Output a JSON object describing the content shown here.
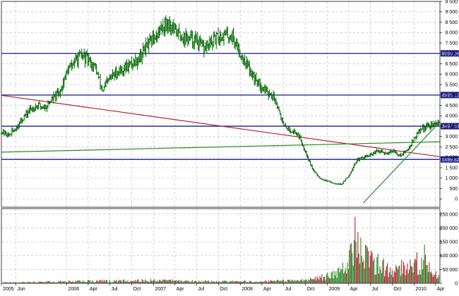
{
  "chart_data": [
    {
      "type": "ohlc",
      "title": "",
      "xlabel": "",
      "ylabel": "",
      "ylim": [
        -400,
        9500
      ],
      "grid": true,
      "y_ticks": [
        0,
        500,
        1000,
        1500,
        2000,
        2500,
        3000,
        3500,
        4000,
        4500,
        5000,
        5500,
        6000,
        6500,
        7000,
        7500,
        8000,
        8500,
        9000,
        9500
      ],
      "y_tick_labels": [
        "0",
        "500",
        "1 000",
        "1 500",
        "2 000",
        "2 500",
        "3 000",
        "3 500",
        "4 000",
        "4 500",
        "5 000",
        "5 500",
        "6 000",
        "6 500",
        "7 000",
        "7 500",
        "8 000",
        "8 500",
        "9 000",
        "9 500"
      ],
      "x_range": [
        "2005-04-01",
        "2010-04-20"
      ],
      "x_ticks": [
        {
          "date": "2005-04-01",
          "label": "2005"
        },
        {
          "date": "2005-06-01",
          "label": "Jun"
        },
        {
          "date": "2006-01-01",
          "label": "2006"
        },
        {
          "date": "2006-04-01",
          "label": "Apr"
        },
        {
          "date": "2006-07-01",
          "label": "Jul"
        },
        {
          "date": "2006-10-01",
          "label": "Oct"
        },
        {
          "date": "2007-01-01",
          "label": "2007"
        },
        {
          "date": "2007-04-01",
          "label": "Apr"
        },
        {
          "date": "2007-07-01",
          "label": "Jul"
        },
        {
          "date": "2007-10-01",
          "label": "Oct"
        },
        {
          "date": "2008-01-01",
          "label": "2008"
        },
        {
          "date": "2008-04-01",
          "label": "Apr"
        },
        {
          "date": "2008-07-01",
          "label": "Jul"
        },
        {
          "date": "2008-10-01",
          "label": "Oct"
        },
        {
          "date": "2009-01-01",
          "label": "2009"
        },
        {
          "date": "2009-04-01",
          "label": "Apr"
        },
        {
          "date": "2009-07-01",
          "label": "Jul"
        },
        {
          "date": "2009-10-01",
          "label": "Oct"
        },
        {
          "date": "2010-01-01",
          "label": "2010"
        },
        {
          "date": "2010-04-01",
          "label": "Apr"
        }
      ],
      "price_path": [
        [
          "2005-04-01",
          3250
        ],
        [
          "2005-05-01",
          3050
        ],
        [
          "2005-06-01",
          3400
        ],
        [
          "2005-07-01",
          3900
        ],
        [
          "2005-08-01",
          4300
        ],
        [
          "2005-09-01",
          4500
        ],
        [
          "2005-10-01",
          4400
        ],
        [
          "2005-11-01",
          4800
        ],
        [
          "2005-12-01",
          5100
        ],
        [
          "2006-01-01",
          6100
        ],
        [
          "2006-02-01",
          6600
        ],
        [
          "2006-03-01",
          6900
        ],
        [
          "2006-04-01",
          6700
        ],
        [
          "2006-05-01",
          6300
        ],
        [
          "2006-06-01",
          5200
        ],
        [
          "2006-07-01",
          5800
        ],
        [
          "2006-08-01",
          6100
        ],
        [
          "2006-09-01",
          6300
        ],
        [
          "2006-10-01",
          6500
        ],
        [
          "2006-11-01",
          6800
        ],
        [
          "2006-12-01",
          7300
        ],
        [
          "2007-01-01",
          7700
        ],
        [
          "2007-02-01",
          8200
        ],
        [
          "2007-03-01",
          8500
        ],
        [
          "2007-04-01",
          8100
        ],
        [
          "2007-05-01",
          7800
        ],
        [
          "2007-06-01",
          7700
        ],
        [
          "2007-07-01",
          7600
        ],
        [
          "2007-08-01",
          7200
        ],
        [
          "2007-09-01",
          7500
        ],
        [
          "2007-10-01",
          7800
        ],
        [
          "2007-11-01",
          7900
        ],
        [
          "2007-12-01",
          7800
        ],
        [
          "2008-01-01",
          7000
        ],
        [
          "2008-02-01",
          6400
        ],
        [
          "2008-03-01",
          5800
        ],
        [
          "2008-04-01",
          5400
        ],
        [
          "2008-05-01",
          5100
        ],
        [
          "2008-06-01",
          4700
        ],
        [
          "2008-07-01",
          3500
        ],
        [
          "2008-08-01",
          3300
        ],
        [
          "2008-09-01",
          3100
        ],
        [
          "2008-10-01",
          2300
        ],
        [
          "2008-11-01",
          1400
        ],
        [
          "2008-12-01",
          1000
        ],
        [
          "2009-01-01",
          850
        ],
        [
          "2009-02-01",
          750
        ],
        [
          "2009-03-01",
          700
        ],
        [
          "2009-04-01",
          1100
        ],
        [
          "2009-05-01",
          1800
        ],
        [
          "2009-06-01",
          2000
        ],
        [
          "2009-07-01",
          2100
        ],
        [
          "2009-08-01",
          2300
        ],
        [
          "2009-09-01",
          2200
        ],
        [
          "2009-10-01",
          2300
        ],
        [
          "2009-11-01",
          2100
        ],
        [
          "2009-12-01",
          2300
        ],
        [
          "2010-01-01",
          2900
        ],
        [
          "2010-02-01",
          3400
        ],
        [
          "2010-03-01",
          3500
        ],
        [
          "2010-04-15",
          3650
        ]
      ],
      "horizontal_levels": [
        {
          "value": 6999.96,
          "label": "6999.96",
          "color": "#1a1a8c"
        },
        {
          "value": 4995.12,
          "label": "4995.12",
          "color": "#1a1a8c"
        },
        {
          "value": 3497.63,
          "label": "3497.63",
          "color": "#1a1a8c"
        },
        {
          "value": 1899.82,
          "label": "1899.82",
          "color": "#1a1a8c"
        }
      ],
      "trend_lines": [
        {
          "color": "#b22232",
          "from": [
            "2005-04-01",
            4980
          ],
          "to": [
            "2010-04-20",
            2030
          ]
        },
        {
          "color": "#2a8a2a",
          "from": [
            "2005-04-01",
            2250
          ],
          "to": [
            "2010-04-20",
            2750
          ]
        },
        {
          "color": "#2a8a2a",
          "from": [
            "2009-06-01",
            -200
          ],
          "to": [
            "2010-04-20",
            3700
          ]
        }
      ],
      "colors": {
        "ohlc": "#006400",
        "grid": "#c0c0c0",
        "frame": "#404040"
      }
    },
    {
      "type": "bar",
      "title": "",
      "xlabel": "",
      "ylabel": "",
      "ylim": [
        0,
        270000
      ],
      "y_ticks": [
        0,
        50000,
        100000,
        150000,
        200000,
        250000
      ],
      "y_tick_labels": [
        "0",
        "50 000",
        "100 000",
        "150 000",
        "200 000",
        "250 000"
      ],
      "volume_profile": [
        [
          "2005-04-01",
          3000
        ],
        [
          "2005-10-01",
          6000
        ],
        [
          "2006-06-01",
          10000
        ],
        [
          "2007-01-01",
          12000
        ],
        [
          "2007-09-01",
          8000
        ],
        [
          "2008-04-01",
          9000
        ],
        [
          "2008-10-01",
          12000
        ],
        [
          "2009-01-01",
          30000
        ],
        [
          "2009-03-01",
          55000
        ],
        [
          "2009-05-01",
          140000
        ],
        [
          "2009-06-01",
          120000
        ],
        [
          "2009-08-01",
          80000
        ],
        [
          "2009-10-01",
          55000
        ],
        [
          "2009-12-01",
          60000
        ],
        [
          "2010-02-01",
          90000
        ],
        [
          "2010-04-15",
          35000
        ]
      ],
      "volume_peaks": [
        [
          "2009-04-28",
          240000
        ],
        [
          "2009-05-10",
          185000
        ],
        [
          "2009-06-20",
          130000
        ],
        [
          "2009-07-10",
          110000
        ],
        [
          "2009-08-25",
          90000
        ],
        [
          "2009-11-10",
          85000
        ],
        [
          "2010-01-12",
          112000
        ],
        [
          "2010-02-15",
          140000
        ],
        [
          "2010-03-05",
          75000
        ]
      ],
      "colors": {
        "up": "#2a8a2a",
        "down": "#b22232"
      }
    }
  ]
}
